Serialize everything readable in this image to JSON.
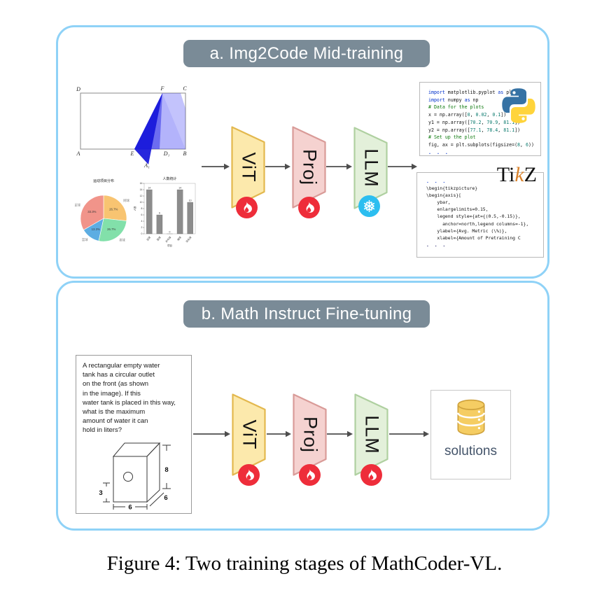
{
  "caption": "Figure 4: Two training stages of MathCoder-VL.",
  "panel_a": {
    "title": "a. Img2Code Mid-training",
    "pipeline": [
      {
        "label": "ViT",
        "status": "trainable"
      },
      {
        "label": "Proj",
        "status": "trainable"
      },
      {
        "label": "LLM",
        "status": "frozen"
      }
    ],
    "geometry_figure": {
      "labels": {
        "D": "D",
        "F": "F",
        "C": "C",
        "A": "A",
        "E": "E",
        "D1": "D₁",
        "B": "B",
        "A1": "A₁"
      }
    },
    "python_code": {
      "lines": [
        "import matplotlib.pyplot as plt",
        "import numpy as np",
        "# Data for the plots",
        "x = np.array([0, 0.02, 0.1])",
        "y1 = np.array([70.2, 70.9, 81.1])",
        "y2 = np.array([77.1, 78.4, 81.1])",
        "# Set up the plot",
        "fig, ax = plt.subplots(figsize=(8, 6))",
        "..."
      ]
    },
    "tikz_code": {
      "top_ellipsis": ". . .",
      "lines": [
        "\\begin{tikzpicture}",
        "\\begin{axis}[",
        "    ybar,",
        "    enlargelimits=0.15,",
        "    legend style={at={(0.5,-0.15)},",
        "      anchor=north,legend columns=-1},",
        "    ylabel={Avg. Metric (\\%)},",
        "    xlabel={Amount of Pretraining C"
      ],
      "bottom_ellipsis": ". . .",
      "logo": {
        "prefix": "Ti",
        "italic_part": "k",
        "suffix": "Z"
      }
    }
  },
  "panel_b": {
    "title": "b. Math Instruct Fine-tuning",
    "pipeline": [
      {
        "label": "ViT",
        "status": "trainable"
      },
      {
        "label": "Proj",
        "status": "trainable"
      },
      {
        "label": "LLM",
        "status": "trainable"
      }
    ],
    "problem": {
      "lines": [
        "A rectangular empty water",
        "tank has a circular outlet",
        "on the front (as shown",
        "in the image). If this",
        "water tank is placed in this way,",
        "what is the maximum",
        "amount of water it can",
        "hold in liters?"
      ],
      "tank_dims": {
        "height": "8",
        "depth": "6",
        "outlet_offset": "3",
        "width": "6"
      }
    },
    "output": {
      "label": "solutions"
    }
  },
  "chart_data": [
    {
      "type": "pie",
      "title": "运动项目分布",
      "labels": [
        "网球",
        "排球",
        "篮球",
        "足球"
      ],
      "values": [
        26.7,
        26.7,
        13.3,
        33.3
      ],
      "value_labels": [
        "26.7%",
        "26.7%",
        "13.3%",
        "33.3%"
      ],
      "colors": [
        "#F8C471",
        "#82E0AA",
        "#5DADE2",
        "#F1948A"
      ],
      "legend_position": "none"
    },
    {
      "type": "bar",
      "title": "人数统计",
      "categories": [
        "足球",
        "篮球",
        "乒乓球",
        "排球",
        "羽毛球"
      ],
      "values": [
        14,
        6,
        0,
        14,
        10
      ],
      "xlabel": "项目",
      "ylabel": "人数",
      "ylim": [
        0,
        16
      ],
      "bar_color": "#8C8C8C",
      "grid": false
    }
  ],
  "colors": {
    "panel_border": "#8FD2F7",
    "title_bg": "#7A8B97",
    "vit_fill": "#FCE9AC",
    "vit_stroke": "#E3B84E",
    "proj_fill": "#F5D2D0",
    "proj_stroke": "#D99B98",
    "llm_fill": "#E3F0DA",
    "llm_stroke": "#AFD0A0",
    "trainable_badge": "#EE2D3A",
    "frozen_badge": "#2CBEF0",
    "arrow": "#4d4d4d",
    "code_keyword": "#0030CC",
    "code_comment": "#0E7A0E",
    "python_logo_blue": "#3672A4",
    "python_logo_yellow": "#FFD43B",
    "tikz_k_orange": "#D9822B",
    "database_gold": "#F5CD63",
    "solutions_text": "#44546A",
    "geometry_blue": "#2626E6"
  }
}
